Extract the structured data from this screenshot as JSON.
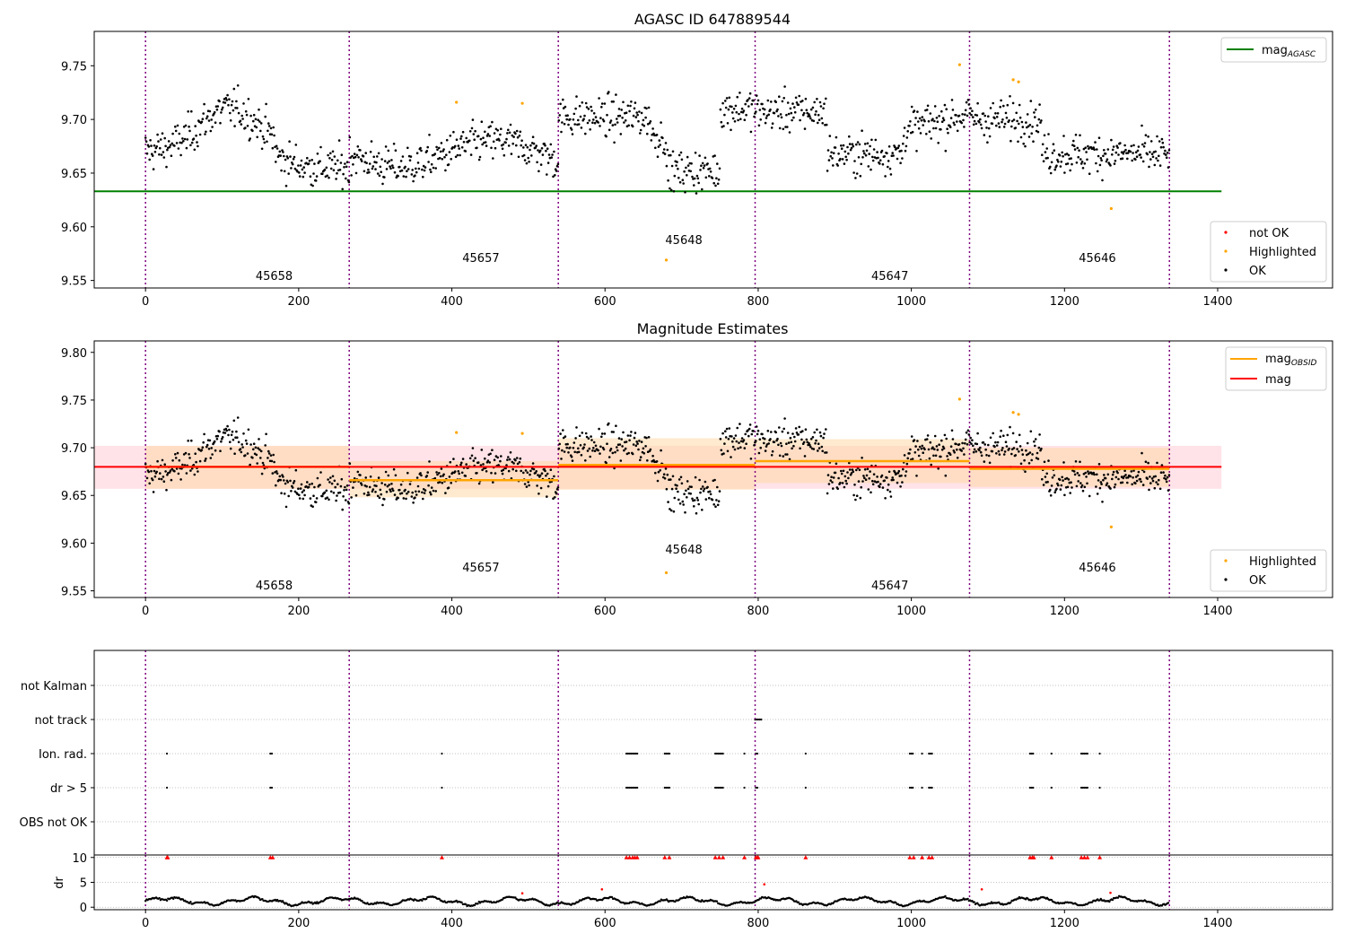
{
  "colors": {
    "ok": "#000000",
    "highlighted": "#ffa500",
    "not_ok": "#ff0000",
    "agasc_line": "#008000",
    "mag_line": "#ff0000",
    "mag_obsid_line": "#ffa500",
    "obs_boundary": "#800080",
    "mag_band": "#ffc0cb",
    "obsid_band": "#ffd8a8"
  },
  "obs_boundaries": [
    0,
    266,
    539,
    796,
    1076,
    1337
  ],
  "obsid_labels": [
    {
      "text": "45658",
      "x": 132,
      "row": 0
    },
    {
      "text": "45657",
      "x": 402,
      "row": 1
    },
    {
      "text": "45648",
      "x": 667,
      "row": 2
    },
    {
      "text": "45647",
      "x": 936,
      "row": 0
    },
    {
      "text": "45646",
      "x": 1207,
      "row": 1
    }
  ],
  "chart_data": [
    {
      "type": "scatter",
      "title": "AGASC ID 647889544",
      "xlim": [
        -67,
        1550
      ],
      "ylim": [
        9.543,
        9.782
      ],
      "yticks": [
        "9.55",
        "9.60",
        "9.65",
        "9.70",
        "9.75"
      ],
      "xticks": [
        "0",
        "200",
        "400",
        "600",
        "800",
        "1000",
        "1200",
        "1400"
      ],
      "grid": false,
      "reference_lines": [
        {
          "name": "mag_AGASC",
          "y": 9.633,
          "x": [
            -67,
            1405
          ]
        }
      ],
      "legend_top": {
        "position": "upper right",
        "entries": [
          {
            "label": "mag",
            "sub": "AGASC",
            "color": "#008000"
          }
        ]
      },
      "legend_bottom": {
        "position": "lower right",
        "entries": [
          {
            "label": "not OK",
            "color": "#ff0000"
          },
          {
            "label": "Highlighted",
            "color": "#ffa500"
          },
          {
            "label": "OK",
            "color": "#000000"
          }
        ]
      },
      "highlighted_points": [
        [
          406,
          9.716
        ],
        [
          492,
          9.715
        ],
        [
          680,
          9.569
        ],
        [
          1063,
          9.751
        ],
        [
          1133,
          9.737
        ],
        [
          1140,
          9.735
        ],
        [
          1261,
          9.617
        ]
      ]
    },
    {
      "type": "scatter",
      "title": "Magnitude Estimates",
      "xlim": [
        -67,
        1550
      ],
      "ylim": [
        9.543,
        9.812
      ],
      "yticks": [
        "9.55",
        "9.60",
        "9.65",
        "9.70",
        "9.75",
        "9.80"
      ],
      "xticks": [
        "0",
        "200",
        "400",
        "600",
        "800",
        "1000",
        "1200",
        "1400"
      ],
      "grid": false,
      "mag": {
        "value": 9.68,
        "band": [
          9.657,
          9.702
        ],
        "x": [
          -67,
          1405
        ]
      },
      "mag_obsid": [
        {
          "obsid": "45658",
          "x": [
            0,
            266
          ],
          "value": 9.68,
          "band": [
            9.657,
            9.702
          ]
        },
        {
          "obsid": "45657",
          "x": [
            266,
            539
          ],
          "value": 9.666,
          "band": [
            9.648,
            9.686
          ]
        },
        {
          "obsid": "45648",
          "x": [
            539,
            796
          ],
          "value": 9.682,
          "band": [
            9.656,
            9.71
          ]
        },
        {
          "obsid": "45647",
          "x": [
            796,
            1076
          ],
          "value": 9.686,
          "band": [
            9.663,
            9.709
          ]
        },
        {
          "obsid": "45646",
          "x": [
            1076,
            1337
          ],
          "value": 9.678,
          "band": [
            9.659,
            9.7
          ]
        }
      ],
      "legend_top": {
        "position": "upper right",
        "entries": [
          {
            "label": "mag",
            "sub": "OBSID",
            "color": "#ffa500"
          },
          {
            "label": "mag",
            "sub": "",
            "color": "#ff0000"
          }
        ]
      },
      "legend_bottom": {
        "position": "lower right",
        "entries": [
          {
            "label": "Highlighted",
            "color": "#ffa500"
          },
          {
            "label": "OK",
            "color": "#000000"
          }
        ]
      },
      "highlighted_points": [
        [
          406,
          9.716
        ],
        [
          492,
          9.715
        ],
        [
          680,
          9.569
        ],
        [
          1063,
          9.751
        ],
        [
          1133,
          9.737
        ],
        [
          1140,
          9.735
        ],
        [
          1261,
          9.617
        ]
      ]
    },
    {
      "type": "scatter",
      "title": "",
      "xlim": [
        -67,
        1550
      ],
      "flag_rows": [
        "not Kalman",
        "not track",
        "Ion. rad.",
        "dr > 5",
        "OBS not OK"
      ],
      "flag_events": {
        "not Kalman": [],
        "not track": [
          [
            796,
            804
          ]
        ],
        "Ion. rad.": [
          [
            28,
            29
          ],
          [
            163,
            166
          ],
          [
            387,
            388
          ],
          [
            628,
            642
          ],
          [
            678,
            684
          ],
          [
            744,
            754
          ],
          [
            782,
            783
          ],
          [
            797,
            800
          ],
          [
            862,
            863
          ],
          [
            998,
            1003
          ],
          [
            1014,
            1015
          ],
          [
            1023,
            1027
          ],
          [
            1155,
            1160
          ],
          [
            1183,
            1184
          ],
          [
            1222,
            1230
          ],
          [
            1246,
            1247
          ]
        ],
        "dr > 5": [
          [
            28,
            29
          ],
          [
            163,
            166
          ],
          [
            387,
            388
          ],
          [
            628,
            642
          ],
          [
            678,
            684
          ],
          [
            744,
            754
          ],
          [
            782,
            783
          ],
          [
            797,
            800
          ],
          [
            862,
            863
          ],
          [
            998,
            1003
          ],
          [
            1014,
            1015
          ],
          [
            1023,
            1027
          ],
          [
            1155,
            1160
          ],
          [
            1183,
            1184
          ],
          [
            1222,
            1230
          ],
          [
            1246,
            1247
          ]
        ],
        "OBS not OK": []
      },
      "dr_panel": {
        "ylabel": "dr",
        "ylim": [
          -0.5,
          10.5
        ],
        "yticks": [
          "0",
          "5",
          "10"
        ],
        "clipped_value": 10,
        "clipped_x": [
          28,
          29,
          163,
          166,
          387,
          628,
          632,
          636,
          639,
          642,
          678,
          684,
          744,
          749,
          754,
          782,
          797,
          799,
          800,
          862,
          998,
          1003,
          1014,
          1023,
          1027,
          1155,
          1158,
          1160,
          1183,
          1222,
          1226,
          1230,
          1246
        ],
        "outliers": [
          [
            492,
            2.8
          ],
          [
            596,
            3.6
          ],
          [
            808,
            4.6
          ],
          [
            1092,
            3.6
          ],
          [
            1260,
            2.9
          ]
        ]
      }
    }
  ]
}
